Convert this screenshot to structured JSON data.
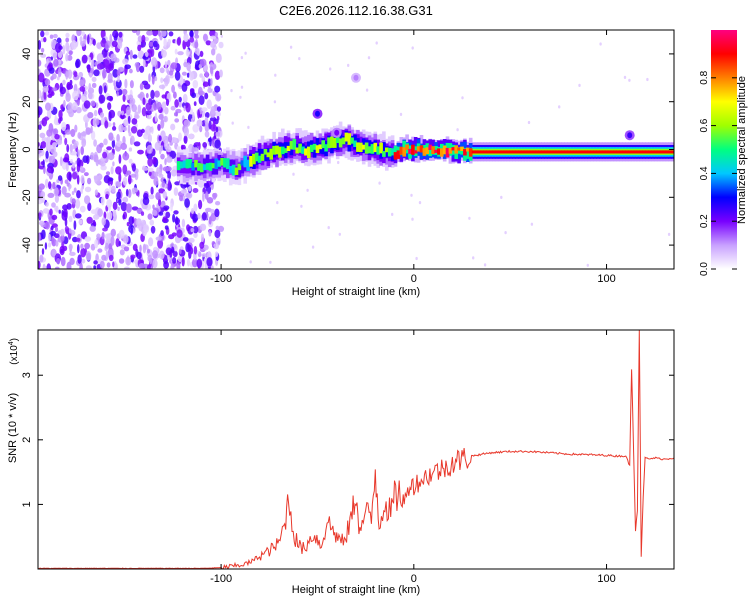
{
  "figure_title": "C2E6.2026.112.16.38.G31",
  "chart_data": [
    {
      "type": "heatmap",
      "name": "spectrogram",
      "xlabel": "Height of straight line (km)",
      "ylabel": "Frequency (Hz)",
      "xlim": [
        -195,
        135
      ],
      "ylim": [
        -50,
        50
      ],
      "xticks": [
        -100,
        0,
        100
      ],
      "yticks": [
        -40,
        -20,
        0,
        20,
        40
      ],
      "noise_region": [
        -195,
        -100
      ],
      "ridge": {
        "x": [
          -122,
          -110,
          -100,
          -92,
          -85,
          -78,
          -70,
          -62,
          -55,
          -48,
          -40,
          -35,
          -30,
          -25,
          -20,
          -15,
          -10,
          -5,
          0,
          10,
          30,
          60,
          90,
          105,
          110,
          113,
          116,
          120,
          135
        ],
        "y": [
          -7,
          -7,
          -6,
          -8,
          -5,
          -2,
          0,
          1,
          0,
          1,
          3,
          4,
          2,
          1,
          0,
          -1,
          -2,
          0,
          0,
          0,
          -1,
          -1,
          -1,
          -1,
          -1,
          -1,
          -1,
          -1,
          -1
        ]
      },
      "blobs": [
        {
          "x": -50,
          "y": 15,
          "amp": 0.28
        },
        {
          "x": -30,
          "y": 30,
          "amp": 0.12
        },
        {
          "x": -40,
          "y": 7,
          "amp": 0.2
        },
        {
          "x": 112,
          "y": 6,
          "amp": 0.25
        }
      ],
      "colorbar": {
        "label": "Normalized spectral amplitude",
        "min": 0,
        "max": 1,
        "ticks": [
          0.0,
          0.2,
          0.4,
          0.6,
          0.8
        ],
        "colors": [
          "#ffffff",
          "#c8a0ff",
          "#7800ff",
          "#0000ff",
          "#00c8ff",
          "#00ff80",
          "#a0ff00",
          "#ffff00",
          "#ff8000",
          "#ff0000",
          "#ff0080"
        ]
      }
    },
    {
      "type": "line",
      "name": "snr",
      "xlabel": "Height of straight line (km)",
      "ylabel": "SNR (10 * v/v)",
      "scale_label": "(x10",
      "scale_exponent": "4",
      "scale_close": ")",
      "xlim": [
        -195,
        135
      ],
      "ylim": [
        0,
        3.7
      ],
      "xticks": [
        -100,
        0,
        100
      ],
      "yticks": [
        1,
        2,
        3
      ],
      "color": "#e8382b",
      "x": [
        -195,
        -110,
        -100,
        -95,
        -90,
        -85,
        -80,
        -75,
        -70,
        -67,
        -65,
        -62,
        -58,
        -55,
        -52,
        -48,
        -45,
        -42,
        -40,
        -36,
        -32,
        -30,
        -28,
        -25,
        -22,
        -20,
        -18,
        -15,
        -12,
        -10,
        -7,
        -5,
        -2,
        0,
        5,
        10,
        15,
        20,
        25,
        30,
        40,
        50,
        60,
        70,
        80,
        90,
        100,
        105,
        110,
        112,
        113,
        114,
        115,
        116,
        117,
        118,
        119,
        120,
        122,
        125,
        130,
        135
      ],
      "y": [
        0.01,
        0.01,
        0.02,
        0.04,
        0.06,
        0.1,
        0.2,
        0.28,
        0.4,
        0.7,
        1.1,
        0.5,
        0.3,
        0.4,
        0.55,
        0.35,
        0.75,
        0.6,
        0.5,
        0.4,
        0.85,
        1.2,
        0.55,
        0.9,
        0.75,
        1.55,
        0.7,
        1.05,
        0.85,
        1.1,
        1.2,
        1.0,
        1.35,
        1.3,
        1.4,
        1.5,
        1.55,
        1.65,
        1.7,
        1.75,
        1.8,
        1.82,
        1.82,
        1.8,
        1.78,
        1.77,
        1.76,
        1.75,
        1.75,
        1.6,
        3.1,
        1.9,
        0.6,
        0.9,
        3.7,
        0.2,
        1.1,
        1.72,
        1.7,
        1.72,
        1.7,
        1.72
      ]
    }
  ]
}
